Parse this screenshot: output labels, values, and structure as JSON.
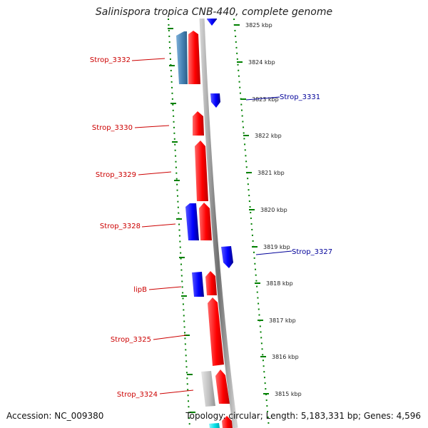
{
  "title": "Salinispora tropica CNB-440, complete genome",
  "footer": {
    "accession": "Accession: NC_009380",
    "topology": "Topology: circular; Length: 5,183,331 bp; Genes: 4,596"
  },
  "colors": {
    "forward_gene": "#ff0000",
    "reverse_gene": "#0000ff",
    "steelblue_gene": "#4682b4",
    "gray_gene": "#c0c0c0",
    "cyan_gene": "#00e0e8",
    "backbone": "#888888",
    "tick": "#008000",
    "forward_label": "#cc0000",
    "reverse_label": "#000099"
  },
  "scale": {
    "ticks": [
      "3825 kbp",
      "3824 kbp",
      "3823 kbp",
      "3822 kbp",
      "3821 kbp",
      "3820 kbp",
      "3819 kbp",
      "3818 kbp",
      "3817 kbp",
      "3816 kbp",
      "3815 kbp"
    ]
  },
  "gene_labels": [
    {
      "name": "Strop_3332",
      "strand": "forward"
    },
    {
      "name": "Strop_3331",
      "strand": "reverse"
    },
    {
      "name": "Strop_3330",
      "strand": "forward"
    },
    {
      "name": "Strop_3329",
      "strand": "forward"
    },
    {
      "name": "Strop_3328",
      "strand": "forward"
    },
    {
      "name": "Strop_3327",
      "strand": "reverse"
    },
    {
      "name": "lipB",
      "strand": "forward"
    },
    {
      "name": "Strop_3325",
      "strand": "forward"
    },
    {
      "name": "Strop_3324",
      "strand": "forward"
    }
  ]
}
